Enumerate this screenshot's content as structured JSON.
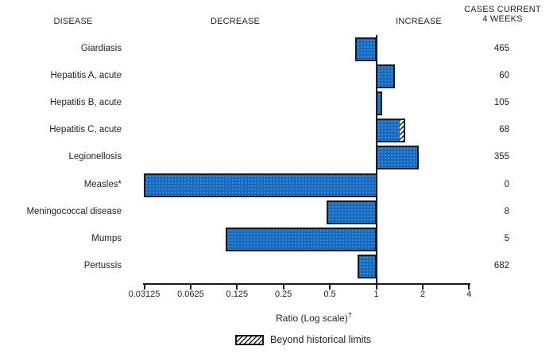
{
  "header": {
    "disease": "DISEASE",
    "decrease": "DECREASE",
    "increase": "INCREASE",
    "cases_line1": "CASES CURRENT",
    "cases_line2": "4 WEEKS"
  },
  "axis": {
    "label": "Ratio (Log scale)",
    "label_sup": "†",
    "ticks": [
      "0.03125",
      "0.0625",
      "0.125",
      "0.25",
      "0.5",
      "1",
      "2",
      "4"
    ]
  },
  "legend": {
    "label": "Beyond historical limits"
  },
  "colors": {
    "bar_fill": "#0c62c4",
    "bar_border": "#1a1a1a",
    "text": "#231f20",
    "hatch": "black-on-white-diagonal"
  },
  "chart_data": {
    "type": "bar",
    "orientation": "horizontal",
    "scale": "log2",
    "xlim": [
      0.03125,
      4
    ],
    "baseline": 1,
    "xlabel": "Ratio (Log scale)†",
    "columns": [
      "DISEASE",
      "RATIO",
      "CASES CURRENT 4 WEEKS"
    ],
    "rows": [
      {
        "disease": "Giardiasis",
        "ratio": 0.74,
        "cases": 465
      },
      {
        "disease": "Hepatitis A, acute",
        "ratio": 1.31,
        "cases": 60
      },
      {
        "disease": "Hepatitis B, acute",
        "ratio": 1.08,
        "cases": 105
      },
      {
        "disease": "Hepatitis C, acute",
        "ratio": 1.52,
        "cases": 68,
        "beyond_historical_from": 1.44
      },
      {
        "disease": "Legionellosis",
        "ratio": 1.87,
        "cases": 355
      },
      {
        "disease": "Measles*",
        "ratio": 0.03125,
        "cases": 0
      },
      {
        "disease": "Meningococcal disease",
        "ratio": 0.48,
        "cases": 8
      },
      {
        "disease": "Mumps",
        "ratio": 0.107,
        "cases": 5
      },
      {
        "disease": "Pertussis",
        "ratio": 0.77,
        "cases": 682
      }
    ]
  }
}
